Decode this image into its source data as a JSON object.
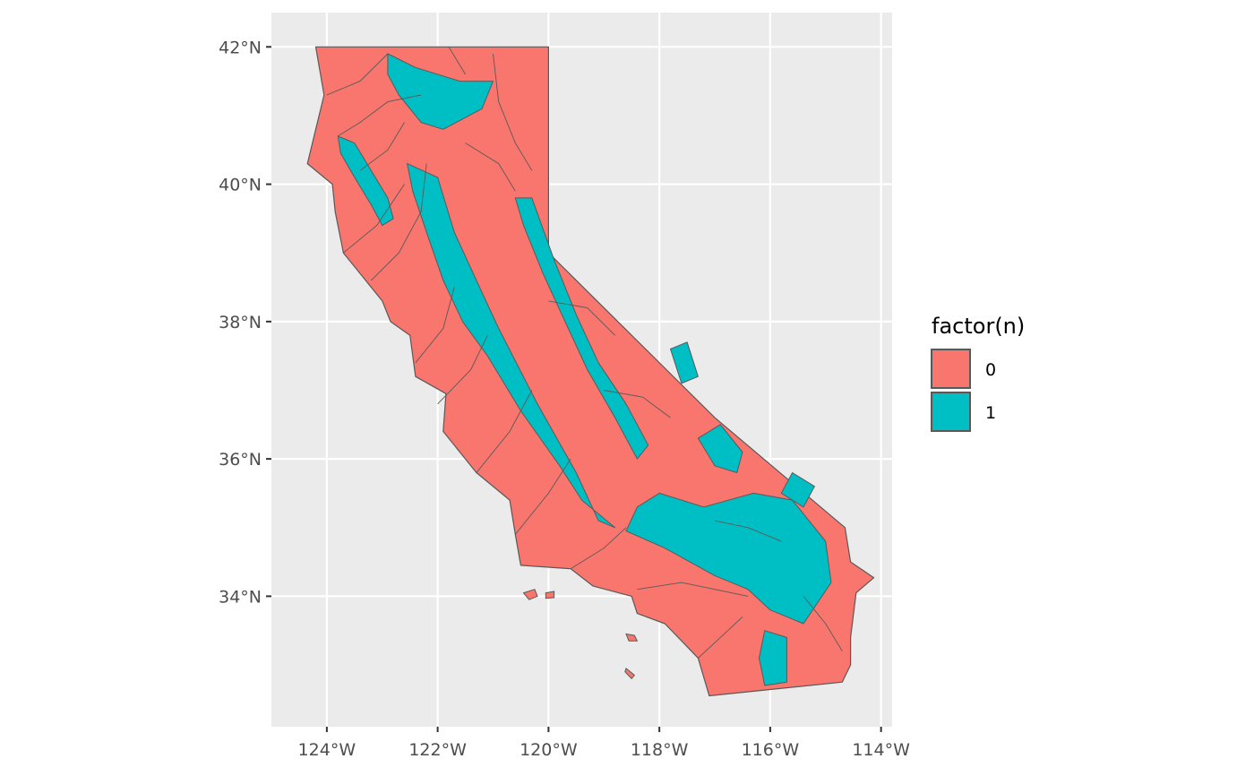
{
  "chart_data": {
    "type": "map",
    "xlim": [
      -125,
      -113.8
    ],
    "ylim": [
      32.1,
      42.5
    ],
    "grid": true,
    "x_ticks": [
      {
        "value": -124,
        "label": "124°W"
      },
      {
        "value": -122,
        "label": "122°W"
      },
      {
        "value": -120,
        "label": "120°W"
      },
      {
        "value": -118,
        "label": "118°W"
      },
      {
        "value": -116,
        "label": "116°W"
      },
      {
        "value": -114,
        "label": "114°W"
      }
    ],
    "y_ticks": [
      {
        "value": 34,
        "label": "34°N"
      },
      {
        "value": 36,
        "label": "36°N"
      },
      {
        "value": 38,
        "label": "38°N"
      },
      {
        "value": 40,
        "label": "40°N"
      },
      {
        "value": 42,
        "label": "42°N"
      }
    ],
    "legend": {
      "title": "factor(n)",
      "placement": "right",
      "entries": [
        {
          "label": "0",
          "color": "#F8766D"
        },
        {
          "label": "1",
          "color": "#00BFC4"
        }
      ]
    },
    "colors": {
      "panel": "#EBEBEB",
      "grid": "#FFFFFF",
      "outline": "#595959",
      "class_0": "#F8766D",
      "class_1": "#00BFC4"
    },
    "outline": [
      [
        -124.2,
        42.0
      ],
      [
        -120.0,
        42.0
      ],
      [
        -120.0,
        39.0
      ],
      [
        -117.0,
        36.6
      ],
      [
        -114.65,
        35.0
      ],
      [
        -114.55,
        34.5
      ],
      [
        -114.13,
        34.27
      ],
      [
        -114.45,
        34.05
      ],
      [
        -114.55,
        33.4
      ],
      [
        -114.55,
        33.0
      ],
      [
        -114.7,
        32.75
      ],
      [
        -117.1,
        32.55
      ],
      [
        -117.3,
        33.1
      ],
      [
        -117.9,
        33.6
      ],
      [
        -118.4,
        33.75
      ],
      [
        -118.5,
        34.0
      ],
      [
        -119.2,
        34.15
      ],
      [
        -119.6,
        34.4
      ],
      [
        -120.5,
        34.45
      ],
      [
        -120.6,
        34.9
      ],
      [
        -120.7,
        35.4
      ],
      [
        -121.3,
        35.8
      ],
      [
        -121.9,
        36.4
      ],
      [
        -121.85,
        36.95
      ],
      [
        -122.4,
        37.2
      ],
      [
        -122.5,
        37.8
      ],
      [
        -122.85,
        38.0
      ],
      [
        -123.0,
        38.3
      ],
      [
        -123.7,
        39.0
      ],
      [
        -123.85,
        39.6
      ],
      [
        -123.9,
        40.0
      ],
      [
        -124.35,
        40.3
      ],
      [
        -124.2,
        40.8
      ],
      [
        -124.05,
        41.3
      ],
      [
        -124.2,
        42.0
      ]
    ],
    "regions_1": [
      [
        [
          -123.8,
          40.7
        ],
        [
          -123.5,
          40.6
        ],
        [
          -122.9,
          39.8
        ],
        [
          -122.8,
          39.5
        ],
        [
          -123.0,
          39.4
        ],
        [
          -123.2,
          39.7
        ],
        [
          -123.5,
          40.1
        ],
        [
          -123.75,
          40.45
        ]
      ],
      [
        [
          -122.9,
          41.9
        ],
        [
          -122.4,
          41.7
        ],
        [
          -121.6,
          41.5
        ],
        [
          -121.0,
          41.5
        ],
        [
          -121.2,
          41.1
        ],
        [
          -121.9,
          40.8
        ],
        [
          -122.3,
          40.9
        ],
        [
          -122.7,
          41.3
        ],
        [
          -122.9,
          41.6
        ]
      ],
      [
        [
          -122.55,
          40.3
        ],
        [
          -122.0,
          40.1
        ],
        [
          -121.7,
          39.3
        ],
        [
          -121.3,
          38.6
        ],
        [
          -120.9,
          37.9
        ],
        [
          -120.2,
          36.8
        ],
        [
          -119.5,
          35.8
        ],
        [
          -119.1,
          35.1
        ],
        [
          -118.8,
          35.0
        ],
        [
          -119.4,
          35.4
        ],
        [
          -119.8,
          35.9
        ],
        [
          -120.5,
          36.7
        ],
        [
          -121.1,
          37.5
        ],
        [
          -121.55,
          38.0
        ],
        [
          -121.9,
          38.6
        ],
        [
          -122.2,
          39.3
        ],
        [
          -122.45,
          39.9
        ]
      ],
      [
        [
          -120.6,
          39.8
        ],
        [
          -120.3,
          39.8
        ],
        [
          -119.9,
          38.9
        ],
        [
          -119.5,
          38.1
        ],
        [
          -119.1,
          37.4
        ],
        [
          -118.6,
          36.8
        ],
        [
          -118.2,
          36.2
        ],
        [
          -118.4,
          36.0
        ],
        [
          -118.8,
          36.6
        ],
        [
          -119.3,
          37.3
        ],
        [
          -119.7,
          38.0
        ],
        [
          -120.1,
          38.7
        ],
        [
          -120.45,
          39.4
        ]
      ],
      [
        [
          -118.0,
          35.5
        ],
        [
          -117.2,
          35.3
        ],
        [
          -116.3,
          35.5
        ],
        [
          -115.6,
          35.4
        ],
        [
          -115.0,
          34.8
        ],
        [
          -114.9,
          34.2
        ],
        [
          -115.4,
          33.6
        ],
        [
          -116.0,
          33.8
        ],
        [
          -116.4,
          34.1
        ],
        [
          -117.0,
          34.3
        ],
        [
          -117.9,
          34.7
        ],
        [
          -118.6,
          34.95
        ],
        [
          -118.4,
          35.3
        ]
      ],
      [
        [
          -116.1,
          33.5
        ],
        [
          -115.7,
          33.4
        ],
        [
          -115.7,
          32.75
        ],
        [
          -116.1,
          32.7
        ],
        [
          -116.2,
          33.1
        ]
      ],
      [
        [
          -117.3,
          36.3
        ],
        [
          -116.9,
          36.5
        ],
        [
          -116.5,
          36.1
        ],
        [
          -116.6,
          35.8
        ],
        [
          -117.0,
          35.9
        ]
      ],
      [
        [
          -115.6,
          35.8
        ],
        [
          -115.2,
          35.6
        ],
        [
          -115.4,
          35.3
        ],
        [
          -115.8,
          35.5
        ]
      ],
      [
        [
          -117.8,
          37.6
        ],
        [
          -117.5,
          37.7
        ],
        [
          -117.3,
          37.2
        ],
        [
          -117.6,
          37.1
        ]
      ]
    ],
    "islands": [
      [
        [
          -120.45,
          34.05
        ],
        [
          -120.25,
          34.1
        ],
        [
          -120.2,
          34.0
        ],
        [
          -120.35,
          33.95
        ]
      ],
      [
        [
          -120.05,
          34.05
        ],
        [
          -119.9,
          34.07
        ],
        [
          -119.9,
          33.98
        ],
        [
          -120.05,
          33.97
        ]
      ],
      [
        [
          -118.6,
          33.45
        ],
        [
          -118.45,
          33.43
        ],
        [
          -118.4,
          33.35
        ],
        [
          -118.55,
          33.35
        ]
      ],
      [
        [
          -118.6,
          32.95
        ],
        [
          -118.45,
          32.85
        ],
        [
          -118.5,
          32.8
        ],
        [
          -118.62,
          32.9
        ]
      ]
    ],
    "boundaries": [
      [
        [
          -124.0,
          41.3
        ],
        [
          -123.4,
          41.5
        ],
        [
          -122.9,
          41.9
        ]
      ],
      [
        [
          -123.8,
          40.7
        ],
        [
          -123.4,
          40.9
        ],
        [
          -122.9,
          41.2
        ],
        [
          -122.3,
          41.3
        ]
      ],
      [
        [
          -123.7,
          39.0
        ],
        [
          -123.1,
          39.4
        ],
        [
          -122.6,
          40.0
        ]
      ],
      [
        [
          -123.2,
          38.6
        ],
        [
          -122.7,
          39.0
        ],
        [
          -122.3,
          39.6
        ],
        [
          -122.2,
          40.3
        ]
      ],
      [
        [
          -122.4,
          37.4
        ],
        [
          -121.9,
          37.9
        ],
        [
          -121.7,
          38.5
        ]
      ],
      [
        [
          -122.0,
          36.8
        ],
        [
          -121.4,
          37.3
        ],
        [
          -121.1,
          37.8
        ]
      ],
      [
        [
          -121.3,
          35.8
        ],
        [
          -120.7,
          36.4
        ],
        [
          -120.3,
          37.0
        ]
      ],
      [
        [
          -120.6,
          34.9
        ],
        [
          -120.0,
          35.5
        ],
        [
          -119.6,
          36.0
        ]
      ],
      [
        [
          -119.6,
          34.4
        ],
        [
          -119.0,
          34.7
        ],
        [
          -118.6,
          35.0
        ]
      ],
      [
        [
          -118.4,
          34.1
        ],
        [
          -117.6,
          34.2
        ],
        [
          -117.0,
          34.1
        ],
        [
          -116.4,
          34.0
        ]
      ],
      [
        [
          -117.3,
          33.1
        ],
        [
          -116.9,
          33.4
        ],
        [
          -116.5,
          33.7
        ]
      ],
      [
        [
          -121.0,
          41.9
        ],
        [
          -120.9,
          41.2
        ],
        [
          -120.6,
          40.6
        ],
        [
          -120.3,
          40.2
        ]
      ],
      [
        [
          -121.8,
          42.0
        ],
        [
          -121.5,
          41.6
        ]
      ],
      [
        [
          -120.0,
          38.3
        ],
        [
          -119.3,
          38.2
        ],
        [
          -118.8,
          37.8
        ]
      ],
      [
        [
          -119.0,
          37.0
        ],
        [
          -118.3,
          36.9
        ],
        [
          -117.8,
          36.6
        ]
      ],
      [
        [
          -117.0,
          35.1
        ],
        [
          -116.4,
          35.0
        ],
        [
          -115.8,
          34.8
        ]
      ],
      [
        [
          -115.4,
          34.0
        ],
        [
          -115.0,
          33.6
        ],
        [
          -114.7,
          33.2
        ]
      ],
      [
        [
          -121.5,
          40.6
        ],
        [
          -120.9,
          40.3
        ],
        [
          -120.6,
          39.9
        ]
      ],
      [
        [
          -123.4,
          40.2
        ],
        [
          -122.9,
          40.5
        ],
        [
          -122.6,
          40.9
        ]
      ]
    ]
  }
}
